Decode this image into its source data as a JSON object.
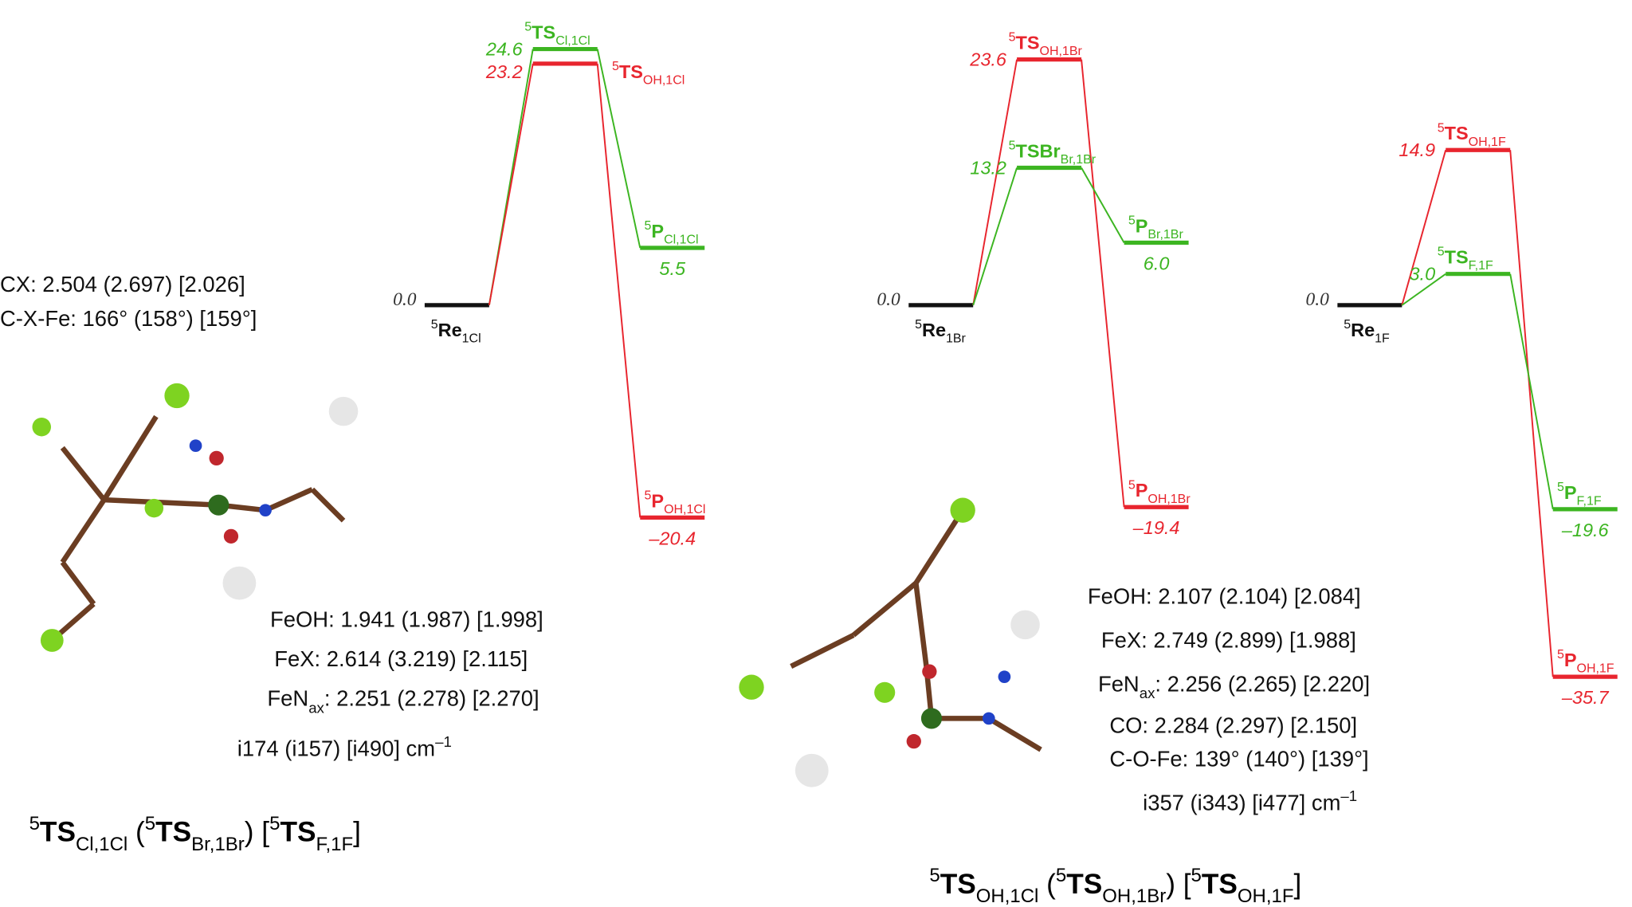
{
  "panels": [
    {
      "reactant": {
        "name": [
          {
            "text": "5",
            "pos": "sup"
          },
          {
            "text": "Re",
            "bold": true
          },
          {
            "text": "1Cl",
            "pos": "sub"
          }
        ],
        "value": 0,
        "value_label": "0.0"
      },
      "paths": [
        {
          "color": "#3cb521",
          "ts": {
            "name": [
              {
                "text": "5",
                "pos": "sup"
              },
              {
                "text": "TS",
                "bold": true
              },
              {
                "text": "Cl,1Cl",
                "pos": "sub"
              }
            ],
            "value": 24.6,
            "value_label": "24.6"
          },
          "product": {
            "name": [
              {
                "text": "5",
                "pos": "sup"
              },
              {
                "text": "P",
                "bold": true
              },
              {
                "text": "Cl,1Cl",
                "pos": "sub"
              }
            ],
            "value": 5.5,
            "value_label": "5.5"
          }
        },
        {
          "color": "#e8252e",
          "ts": {
            "name": [
              {
                "text": "5",
                "pos": "sup"
              },
              {
                "text": "TS",
                "bold": true
              },
              {
                "text": "OH,1Cl",
                "pos": "sub"
              }
            ],
            "value": 23.2,
            "value_label": "23.2"
          },
          "product": {
            "name": [
              {
                "text": "5",
                "pos": "sup"
              },
              {
                "text": "P",
                "bold": true
              },
              {
                "text": "OH,1Cl",
                "pos": "sub"
              }
            ],
            "value": -20.4,
            "value_label": "–20.4"
          }
        }
      ]
    },
    {
      "reactant": {
        "name": [
          {
            "text": "5",
            "pos": "sup"
          },
          {
            "text": "Re",
            "bold": true
          },
          {
            "text": "1Br",
            "pos": "sub"
          }
        ],
        "value": 0,
        "value_label": "0.0"
      },
      "paths": [
        {
          "color": "#e8252e",
          "ts": {
            "name": [
              {
                "text": "5",
                "pos": "sup"
              },
              {
                "text": "TS",
                "bold": true
              },
              {
                "text": "OH,1Br",
                "pos": "sub"
              }
            ],
            "value": 23.6,
            "value_label": "23.6"
          },
          "product": {
            "name": [
              {
                "text": "5",
                "pos": "sup"
              },
              {
                "text": "P",
                "bold": true
              },
              {
                "text": "OH,1Br",
                "pos": "sub"
              }
            ],
            "value": -19.4,
            "value_label": "–19.4"
          }
        },
        {
          "color": "#3cb521",
          "ts": {
            "name": [
              {
                "text": "5",
                "pos": "sup"
              },
              {
                "text": "TSBr",
                "bold": true
              },
              {
                "text": "Br,1Br",
                "pos": "sub"
              }
            ],
            "value": 13.2,
            "value_label": "13.2"
          },
          "product": {
            "name": [
              {
                "text": "5",
                "pos": "sup"
              },
              {
                "text": "P",
                "bold": true
              },
              {
                "text": "Br,1Br",
                "pos": "sub"
              }
            ],
            "value": 6.0,
            "value_label": "6.0"
          }
        }
      ]
    },
    {
      "reactant": {
        "name": [
          {
            "text": "5",
            "pos": "sup"
          },
          {
            "text": "Re",
            "bold": true
          },
          {
            "text": "1F",
            "pos": "sub"
          }
        ],
        "value": 0,
        "value_label": "0.0"
      },
      "paths": [
        {
          "color": "#e8252e",
          "ts": {
            "name": [
              {
                "text": "5",
                "pos": "sup"
              },
              {
                "text": "TS",
                "bold": true
              },
              {
                "text": "OH,1F",
                "pos": "sub"
              }
            ],
            "value": 14.9,
            "value_label": "14.9"
          },
          "product": {
            "name": [
              {
                "text": "5",
                "pos": "sup"
              },
              {
                "text": "P",
                "bold": true
              },
              {
                "text": "OH,1F",
                "pos": "sub"
              }
            ],
            "value": -35.7,
            "value_label": "–35.7"
          }
        },
        {
          "color": "#3cb521",
          "ts": {
            "name": [
              {
                "text": "5",
                "pos": "sup"
              },
              {
                "text": "TS",
                "bold": true
              },
              {
                "text": "F,1F",
                "pos": "sub"
              }
            ],
            "value": 3.0,
            "value_label": "3.0"
          },
          "product": {
            "name": [
              {
                "text": "5",
                "pos": "sup"
              },
              {
                "text": "P",
                "bold": true
              },
              {
                "text": "F,1F",
                "pos": "sub"
              }
            ],
            "value": -19.6,
            "value_label": "–19.6"
          }
        }
      ]
    }
  ],
  "structures": [
    {
      "lines": [
        [
          {
            "text": "CX: 2.504 (2.697) [2.026]"
          }
        ],
        [
          {
            "text": "C-X-Fe: 166° (158°) [159°]"
          }
        ],
        [
          {
            "text": "FeOH: 1.941 (1.987) [1.998]"
          }
        ],
        [
          {
            "text": "FeX: 2.614 (3.219) [2.115]"
          }
        ],
        [
          {
            "text": "FeN"
          },
          {
            "text": "ax",
            "pos": "sub"
          },
          {
            "text": ": 2.251 (2.278) [2.270]"
          }
        ],
        [
          {
            "text": "i174 (i157) [i490] cm"
          },
          {
            "text": "–1",
            "pos": "sup"
          }
        ]
      ],
      "caption": [
        {
          "text": "5",
          "pos": "sup"
        },
        {
          "text": "TS",
          "bold": true
        },
        {
          "text": "Cl,1Cl",
          "pos": "sub"
        },
        {
          "text": " ("
        },
        {
          "text": "5",
          "pos": "sup"
        },
        {
          "text": "TS",
          "bold": true
        },
        {
          "text": "Br,1Br",
          "pos": "sub"
        },
        {
          "text": ") ["
        },
        {
          "text": "5",
          "pos": "sup"
        },
        {
          "text": "TS",
          "bold": true
        },
        {
          "text": "F,1F",
          "pos": "sub"
        },
        {
          "text": "]"
        }
      ]
    },
    {
      "lines": [
        [
          {
            "text": "FeOH: 2.107 (2.104) [2.084]"
          }
        ],
        [
          {
            "text": "FeX: 2.749 (2.899) [1.988]"
          }
        ],
        [
          {
            "text": "FeN"
          },
          {
            "text": "ax",
            "pos": "sub"
          },
          {
            "text": ": 2.256 (2.265) [2.220]"
          }
        ],
        [
          {
            "text": "CO: 2.284 (2.297) [2.150]"
          }
        ],
        [
          {
            "text": "C-O-Fe: 139° (140°) [139°]"
          }
        ],
        [
          {
            "text": "i357 (i343) [i477] cm"
          },
          {
            "text": "–1",
            "pos": "sup"
          }
        ]
      ],
      "caption": [
        {
          "text": "5",
          "pos": "sup"
        },
        {
          "text": "TS",
          "bold": true
        },
        {
          "text": "OH,1Cl",
          "pos": "sub"
        },
        {
          "text": " ("
        },
        {
          "text": "5",
          "pos": "sup"
        },
        {
          "text": "TS",
          "bold": true
        },
        {
          "text": "OH,1Br",
          "pos": "sub"
        },
        {
          "text": ") ["
        },
        {
          "text": "5",
          "pos": "sup"
        },
        {
          "text": "TS",
          "bold": true
        },
        {
          "text": "OH,1F",
          "pos": "sub"
        },
        {
          "text": "]"
        }
      ]
    }
  ]
}
